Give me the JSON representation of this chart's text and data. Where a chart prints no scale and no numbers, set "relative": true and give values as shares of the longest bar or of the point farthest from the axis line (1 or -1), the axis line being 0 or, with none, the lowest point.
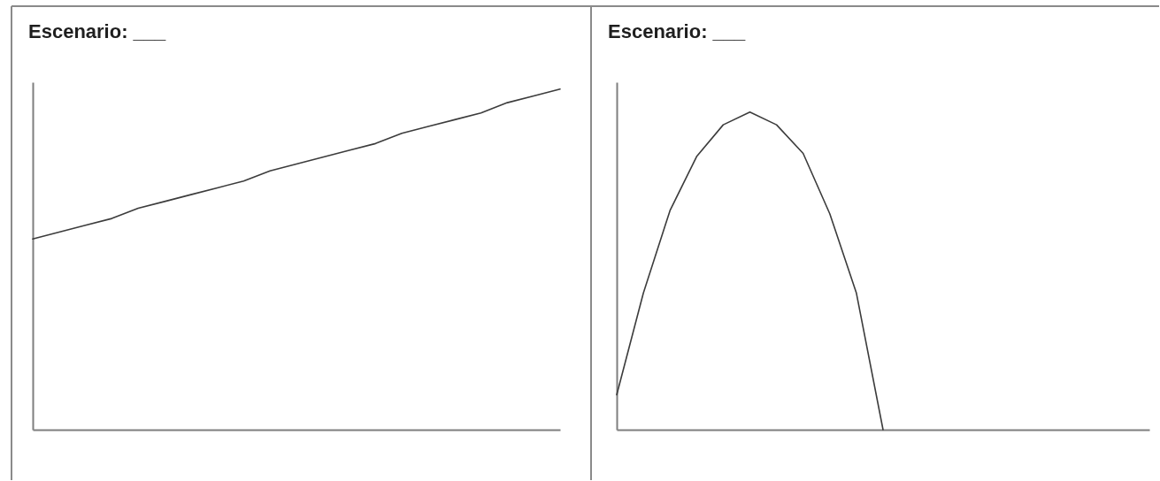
{
  "chart_data": [
    {
      "type": "line",
      "title": "Escenario:  ___",
      "relative": true,
      "categories": [
        null,
        null,
        null,
        null,
        null,
        null,
        null,
        null,
        null,
        null,
        null,
        null,
        null,
        null,
        null,
        null,
        null,
        null,
        null,
        null,
        null
      ],
      "series": [
        {
          "color": "#3c3c3c",
          "values": [
            0.56,
            0.58,
            0.6,
            0.62,
            0.65,
            0.67,
            0.69,
            0.71,
            0.73,
            0.76,
            0.78,
            0.8,
            0.82,
            0.84,
            0.87,
            0.89,
            0.91,
            0.93,
            0.96,
            0.98,
            1
          ]
        }
      ]
    },
    {
      "type": "line",
      "title": "Escenario:  ___",
      "relative": true,
      "categories": [
        null,
        null,
        null,
        null,
        null,
        null,
        null,
        null,
        null,
        null,
        null,
        null,
        null,
        null,
        null,
        null,
        null,
        null,
        null,
        null,
        null
      ],
      "series": [
        {
          "color": "#3c3c3c",
          "values": [
            0.11,
            0.43,
            0.69,
            0.86,
            0.96,
            1,
            0.96,
            0.87,
            0.68,
            0.43,
            0,
            null,
            null,
            null,
            null,
            null,
            null,
            null,
            null,
            null,
            null
          ]
        }
      ]
    }
  ]
}
